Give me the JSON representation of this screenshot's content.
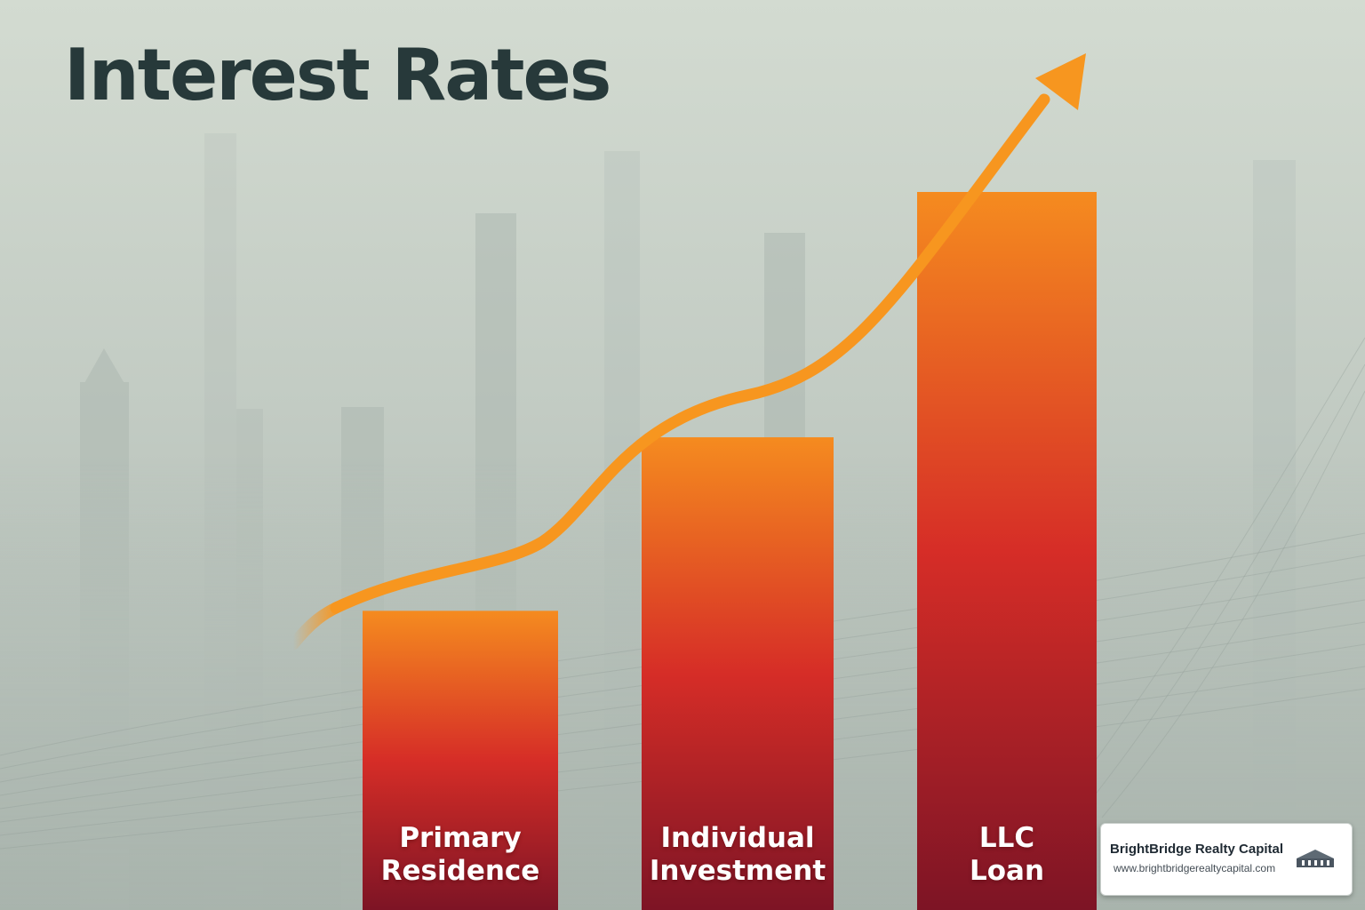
{
  "chart_data": {
    "type": "bar",
    "title": "Interest Rates",
    "categories": [
      [
        "Primary",
        "Residence"
      ],
      [
        "Individual",
        "Investment"
      ],
      [
        "LLC",
        "Loan"
      ]
    ],
    "values": [
      1.0,
      1.58,
      2.4
    ],
    "trend_arrow": "increasing",
    "bar_colors": {
      "top": "#f58b1f",
      "mid": "#d62d27",
      "bottom": "#7d1425"
    },
    "arrow_color": "#f7961f"
  },
  "brand": {
    "name": "BrightBridge Realty Capital",
    "url": "www.brightbridgerealtycapital.com",
    "logo_icon": "building-skyline-icon"
  },
  "colors": {
    "title": "#27393a",
    "background_top": "#d3dbd1",
    "background_bottom": "#a7b2ab"
  }
}
